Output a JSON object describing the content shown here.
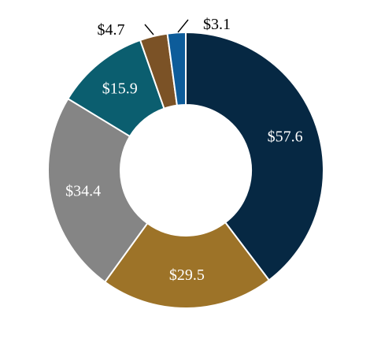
{
  "chart_data": {
    "type": "pie",
    "variant": "donut",
    "title": "",
    "legend": "none",
    "slices": [
      {
        "label": "$57.6",
        "value": 57.6,
        "color": "#062843",
        "label_position": "inside",
        "label_color": "#ffffff"
      },
      {
        "label": "$29.5",
        "value": 29.5,
        "color": "#9d7328",
        "label_position": "inside",
        "label_color": "#ffffff"
      },
      {
        "label": "$34.4",
        "value": 34.4,
        "color": "#858585",
        "label_position": "inside",
        "label_color": "#ffffff"
      },
      {
        "label": "$15.9",
        "value": 15.9,
        "color": "#0b5e6f",
        "label_position": "inside",
        "label_color": "#ffffff"
      },
      {
        "label": "$4.7",
        "value": 4.7,
        "color": "#7b5226",
        "label_position": "outside",
        "label_color": "#000000"
      },
      {
        "label": "$3.1",
        "value": 3.1,
        "color": "#0d5c9a",
        "label_position": "outside",
        "label_color": "#000000"
      }
    ]
  }
}
